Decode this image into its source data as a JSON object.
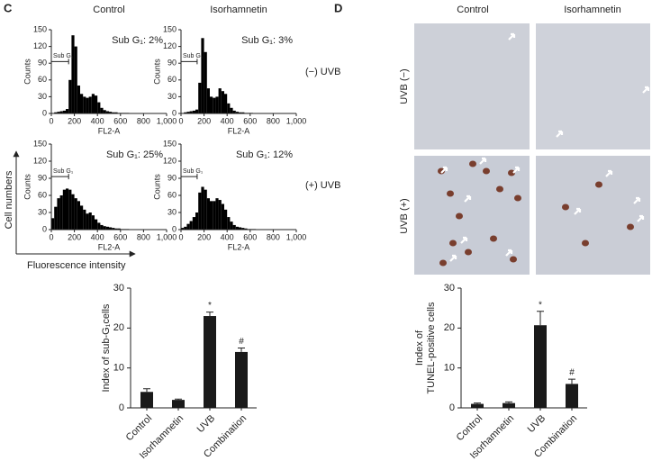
{
  "panel_labels": [
    "C",
    "D"
  ],
  "flow": {
    "column_headers": [
      "Control",
      "Isorhamnetin"
    ],
    "row_labels": [
      "(−) UVB",
      "(+) UVB"
    ],
    "y_axis_label": "Cell numbers",
    "x_axis_label": "Fluorescence intensity"
  },
  "tunel": {
    "column_headers": [
      "Control",
      "Isorhamnetin"
    ],
    "row_labels": [
      "UVB (−)",
      "UVB (+)"
    ]
  },
  "chart_data": [
    {
      "type": "histogram",
      "annotation": "Sub G₁: 2%",
      "gate_label": "Sub G₁",
      "gate": [
        0,
        150
      ],
      "xlabel": "FL2-A",
      "ylabel": "Counts",
      "color": "#000000",
      "bins": [
        0,
        25,
        50,
        75,
        100,
        125,
        150,
        175,
        200,
        225,
        250,
        275,
        300,
        325,
        350,
        375,
        400,
        425,
        450,
        475,
        500,
        525,
        550,
        575,
        600,
        625,
        650,
        675,
        700,
        725,
        750,
        775,
        800,
        825,
        850,
        875,
        900,
        925,
        950,
        975,
        1000
      ],
      "counts": [
        0,
        2,
        3,
        4,
        5,
        8,
        60,
        140,
        120,
        50,
        35,
        30,
        28,
        30,
        35,
        32,
        20,
        10,
        6,
        4,
        3,
        2,
        2,
        1,
        1,
        1,
        1,
        0,
        0,
        0,
        0,
        0,
        0,
        0,
        0,
        0,
        0,
        0,
        0,
        0
      ],
      "xlim": [
        0,
        1000
      ],
      "ylim": [
        0,
        150
      ],
      "xticks": [
        0,
        200,
        400,
        600,
        800,
        {
          "value": 1000,
          "label": "1,000"
        }
      ],
      "yticks": [
        0,
        30,
        60,
        90,
        120,
        150
      ]
    },
    {
      "type": "histogram",
      "annotation": "Sub G₁: 3%",
      "gate_label": "Sub G₁",
      "gate": [
        0,
        140
      ],
      "xlabel": "FL2-A",
      "ylabel": "Counts",
      "color": "#000000",
      "bins": [
        0,
        25,
        50,
        75,
        100,
        125,
        150,
        175,
        200,
        225,
        250,
        275,
        300,
        325,
        350,
        375,
        400,
        425,
        450,
        475,
        500,
        525,
        550,
        575,
        600,
        625,
        650,
        675,
        700,
        725,
        750,
        775,
        800,
        825,
        850,
        875,
        900,
        925,
        950,
        975,
        1000
      ],
      "counts": [
        0,
        2,
        3,
        4,
        5,
        7,
        55,
        135,
        110,
        45,
        30,
        28,
        30,
        45,
        40,
        35,
        18,
        10,
        5,
        3,
        2,
        2,
        1,
        1,
        1,
        0,
        0,
        0,
        0,
        0,
        0,
        0,
        0,
        0,
        0,
        0,
        0,
        0,
        0,
        0
      ],
      "xlim": [
        0,
        1000
      ],
      "ylim": [
        0,
        150
      ],
      "xticks": [
        0,
        200,
        400,
        600,
        800,
        {
          "value": 1000,
          "label": "1,000"
        }
      ],
      "yticks": [
        0,
        30,
        60,
        90,
        120,
        150
      ]
    },
    {
      "type": "histogram",
      "annotation": "Sub G₁: 25%",
      "gate_label": "Sub G₁",
      "gate": [
        0,
        150
      ],
      "xlabel": "FL2-A",
      "ylabel": "Counts",
      "color": "#000000",
      "bins": [
        0,
        25,
        50,
        75,
        100,
        125,
        150,
        175,
        200,
        225,
        250,
        275,
        300,
        325,
        350,
        375,
        400,
        425,
        450,
        475,
        500,
        525,
        550,
        575,
        600,
        625,
        650,
        675,
        700,
        725,
        750,
        775,
        800,
        825,
        850,
        875,
        900,
        925,
        950,
        975,
        1000
      ],
      "counts": [
        20,
        40,
        55,
        60,
        70,
        72,
        70,
        62,
        55,
        50,
        42,
        35,
        28,
        30,
        25,
        18,
        12,
        8,
        6,
        5,
        4,
        3,
        2,
        2,
        1,
        1,
        1,
        0,
        0,
        0,
        0,
        0,
        0,
        0,
        0,
        0,
        0,
        0,
        0,
        0
      ],
      "xlim": [
        0,
        1000
      ],
      "ylim": [
        0,
        150
      ],
      "xticks": [
        0,
        200,
        400,
        600,
        800,
        {
          "value": 1000,
          "label": "1,000"
        }
      ],
      "yticks": [
        0,
        30,
        60,
        90,
        120,
        150
      ]
    },
    {
      "type": "histogram",
      "annotation": "Sub G₁: 12%",
      "gate_label": "Sub G₁",
      "gate": [
        0,
        140
      ],
      "xlabel": "FL2-A",
      "ylabel": "Counts",
      "color": "#000000",
      "bins": [
        0,
        25,
        50,
        75,
        100,
        125,
        150,
        175,
        200,
        225,
        250,
        275,
        300,
        325,
        350,
        375,
        400,
        425,
        450,
        475,
        500,
        525,
        550,
        575,
        600,
        625,
        650,
        675,
        700,
        725,
        750,
        775,
        800,
        825,
        850,
        875,
        900,
        925,
        950,
        975,
        1000
      ],
      "counts": [
        3,
        5,
        10,
        15,
        22,
        30,
        65,
        75,
        70,
        55,
        50,
        50,
        55,
        52,
        45,
        35,
        22,
        14,
        8,
        5,
        4,
        3,
        2,
        1,
        1,
        1,
        0,
        0,
        0,
        0,
        0,
        0,
        0,
        0,
        0,
        0,
        0,
        0,
        0,
        0
      ],
      "xlim": [
        0,
        1000
      ],
      "ylim": [
        0,
        150
      ],
      "xticks": [
        0,
        200,
        400,
        600,
        800,
        {
          "value": 1000,
          "label": "1,000"
        }
      ],
      "yticks": [
        0,
        30,
        60,
        90,
        120,
        150
      ]
    },
    {
      "type": "bar",
      "ylabel": "Index of sub-G₁cells",
      "color": "#1a1a1a",
      "categories": [
        "Control",
        "Isorhamnetin",
        "UVB",
        "Combination"
      ],
      "values": [
        4,
        2,
        23,
        14
      ],
      "errors": [
        0.8,
        0.2,
        1,
        1
      ],
      "annotations": [
        null,
        null,
        "*",
        "#"
      ],
      "ylim": [
        0,
        30
      ],
      "yticks": [
        0,
        10,
        20,
        30
      ]
    },
    {
      "type": "bar",
      "ylabel": [
        "Index of",
        "TUNEL-positive cells"
      ],
      "color": "#1a1a1a",
      "categories": [
        "Control",
        "Isorhamnetin",
        "UVB",
        "Combination"
      ],
      "values": [
        1,
        1.2,
        20.7,
        6
      ],
      "errors": [
        0.2,
        0.3,
        3.5,
        1.2
      ],
      "annotations": [
        null,
        null,
        "*",
        "#"
      ],
      "ylim": [
        0,
        30
      ],
      "yticks": [
        0,
        10,
        20,
        30
      ]
    }
  ]
}
